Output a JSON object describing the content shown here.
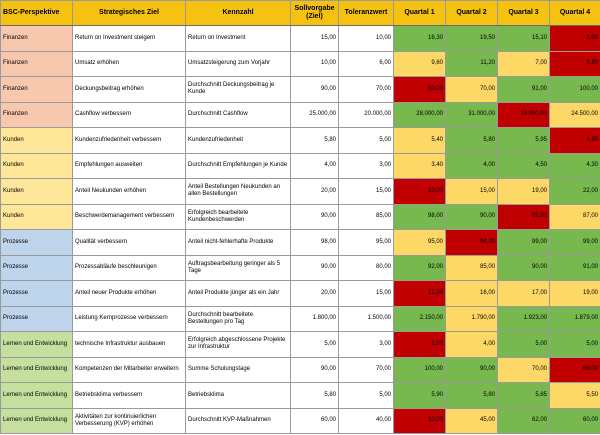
{
  "columns": [
    "BSC-Perspektive",
    "Strategisches Ziel",
    "Kennzahl",
    "Sollvorgabe (Ziel)",
    "Toleranzwert",
    "Quartal 1",
    "Quartal 2",
    "Quartal 3",
    "Quartal 4"
  ],
  "colors": {
    "header": "#f6c212",
    "green": "#77b94f",
    "yellow": "#fed867",
    "red": "#c00000",
    "perspective": {
      "Finanzen": "#f7c7ae",
      "Kunden": "#ffe799",
      "Prozesse": "#bdd4ea",
      "Lernen und Entwicklung": "#c5df9f"
    }
  },
  "rows": [
    {
      "perspective": "Finanzen",
      "goal": "Return on Investment steigern",
      "kpi": "Return on Investment",
      "target": "15,00",
      "tolerance": "10,00",
      "q": [
        {
          "v": "16,30",
          "s": "green"
        },
        {
          "v": "19,50",
          "s": "green"
        },
        {
          "v": "15,10",
          "s": "green"
        },
        {
          "v": "8,00",
          "s": "red"
        }
      ]
    },
    {
      "perspective": "Finanzen",
      "goal": "Umsatz erhöhen",
      "kpi": "Umsatzsteigerung zum Vorjahr",
      "target": "10,00",
      "tolerance": "6,00",
      "q": [
        {
          "v": "9,60",
          "s": "yellow"
        },
        {
          "v": "11,20",
          "s": "green"
        },
        {
          "v": "7,00",
          "s": "yellow"
        },
        {
          "v": "5,80",
          "s": "red"
        }
      ]
    },
    {
      "perspective": "Finanzen",
      "goal": "Deckungsbeitrag erhöhen",
      "kpi": "Durchschnitt Deckungsbeitrag je Kunde",
      "target": "90,00",
      "tolerance": "70,00",
      "q": [
        {
          "v": "50,00",
          "s": "red"
        },
        {
          "v": "70,00",
          "s": "yellow"
        },
        {
          "v": "91,00",
          "s": "green"
        },
        {
          "v": "100,00",
          "s": "green"
        }
      ]
    },
    {
      "perspective": "Finanzen",
      "goal": "Cashflow verbessern",
      "kpi": "Durchschnitt Cashflow",
      "target": "25.000,00",
      "tolerance": "20.000,00",
      "q": [
        {
          "v": "28.000,00",
          "s": "green"
        },
        {
          "v": "31.000,00",
          "s": "green"
        },
        {
          "v": "19.000,00",
          "s": "red"
        },
        {
          "v": "24.500,00",
          "s": "yellow"
        }
      ]
    },
    {
      "perspective": "Kunden",
      "goal": "Kundenzufriedenheit verbessern",
      "kpi": "Kundenzufriedenheit",
      "target": "5,80",
      "tolerance": "5,00",
      "q": [
        {
          "v": "5,40",
          "s": "yellow"
        },
        {
          "v": "5,80",
          "s": "green"
        },
        {
          "v": "5,95",
          "s": "green"
        },
        {
          "v": "4,90",
          "s": "red"
        }
      ]
    },
    {
      "perspective": "Kunden",
      "goal": "Empfehlungen ausweiten",
      "kpi": "Durchschnitt Empfehlungen je Kunde",
      "target": "4,00",
      "tolerance": "3,00",
      "q": [
        {
          "v": "3,40",
          "s": "yellow"
        },
        {
          "v": "4,00",
          "s": "green"
        },
        {
          "v": "4,50",
          "s": "green"
        },
        {
          "v": "4,30",
          "s": "green"
        }
      ]
    },
    {
      "perspective": "Kunden",
      "goal": "Anteil Neukunden erhöhen",
      "kpi": "Anteil Bestellungen Neukunden an allen Bestellungen",
      "target": "20,00",
      "tolerance": "15,00",
      "q": [
        {
          "v": "10,00",
          "s": "red"
        },
        {
          "v": "15,00",
          "s": "yellow"
        },
        {
          "v": "19,00",
          "s": "yellow"
        },
        {
          "v": "22,00",
          "s": "green"
        }
      ]
    },
    {
      "perspective": "Kunden",
      "goal": "Beschwerdemanagement verbessern",
      "kpi": "Erfolgreich bearbeitete Kundenbeschwerden",
      "target": "90,00",
      "tolerance": "85,00",
      "q": [
        {
          "v": "98,00",
          "s": "green"
        },
        {
          "v": "90,00",
          "s": "green"
        },
        {
          "v": "82,00",
          "s": "red"
        },
        {
          "v": "87,00",
          "s": "yellow"
        }
      ]
    },
    {
      "perspective": "Prozesse",
      "goal": "Qualität verbessern",
      "kpi": "Anteil nicht-fehlerhafte Produkte",
      "target": "98,00",
      "tolerance": "95,00",
      "q": [
        {
          "v": "95,00",
          "s": "yellow"
        },
        {
          "v": "94,00",
          "s": "red"
        },
        {
          "v": "99,00",
          "s": "green"
        },
        {
          "v": "99,00",
          "s": "green"
        }
      ]
    },
    {
      "perspective": "Prozesse",
      "goal": "Prozessabläufe beschleunigen",
      "kpi": "Auftragsbearbeitung geringer als 5 Tage",
      "target": "90,00",
      "tolerance": "80,00",
      "q": [
        {
          "v": "92,00",
          "s": "green"
        },
        {
          "v": "85,00",
          "s": "yellow"
        },
        {
          "v": "90,00",
          "s": "green"
        },
        {
          "v": "91,00",
          "s": "green"
        }
      ]
    },
    {
      "perspective": "Prozesse",
      "goal": "Anteil neuer Produkte erhöhen",
      "kpi": "Anteil Produkte jünger als ein Jahr",
      "target": "20,00",
      "tolerance": "15,00",
      "q": [
        {
          "v": "12,00",
          "s": "red"
        },
        {
          "v": "16,00",
          "s": "yellow"
        },
        {
          "v": "17,00",
          "s": "yellow"
        },
        {
          "v": "19,00",
          "s": "yellow"
        }
      ]
    },
    {
      "perspective": "Prozesse",
      "goal": "Leistung Kernprozesse verbessern",
      "kpi": "Durchschnitt bearbeitete Bestellungen pro Tag",
      "target": "1.800,00",
      "tolerance": "1.500,00",
      "q": [
        {
          "v": "2.150,00",
          "s": "green"
        },
        {
          "v": "1.790,00",
          "s": "yellow"
        },
        {
          "v": "1.923,00",
          "s": "green"
        },
        {
          "v": "1.879,00",
          "s": "green"
        }
      ]
    },
    {
      "perspective": "Lernen und Entwicklung",
      "goal": "technische Infrastruktur ausbauen",
      "kpi": "Erfolgreich abgeschlossene Projekte zur Infrastruktur",
      "target": "5,00",
      "tolerance": "3,00",
      "q": [
        {
          "v": "2,00",
          "s": "red"
        },
        {
          "v": "4,00",
          "s": "yellow"
        },
        {
          "v": "5,00",
          "s": "green"
        },
        {
          "v": "5,00",
          "s": "green"
        }
      ]
    },
    {
      "perspective": "Lernen und Entwicklung",
      "goal": "Kompetenzen der Mitarbeiter erweitern",
      "kpi": "Summe Schulungstage",
      "target": "90,00",
      "tolerance": "70,00",
      "q": [
        {
          "v": "100,00",
          "s": "green"
        },
        {
          "v": "90,00",
          "s": "green"
        },
        {
          "v": "70,00",
          "s": "yellow"
        },
        {
          "v": "60,00",
          "s": "red"
        }
      ]
    },
    {
      "perspective": "Lernen und Entwicklung",
      "goal": "Betriebsklima verbessern",
      "kpi": "Betriebsklima",
      "target": "5,80",
      "tolerance": "5,00",
      "q": [
        {
          "v": "5,90",
          "s": "green"
        },
        {
          "v": "5,80",
          "s": "green"
        },
        {
          "v": "5,85",
          "s": "green"
        },
        {
          "v": "5,50",
          "s": "yellow"
        }
      ]
    },
    {
      "perspective": "Lernen und Entwicklung",
      "goal": "Aktivitäten zur kontinuierlichen Verbesserung (KVP) erhöhen",
      "kpi": "Durchschnitt KVP-Maßnahmen",
      "target": "60,00",
      "tolerance": "40,00",
      "q": [
        {
          "v": "10,00",
          "s": "red"
        },
        {
          "v": "45,00",
          "s": "yellow"
        },
        {
          "v": "62,00",
          "s": "green"
        },
        {
          "v": "60,00",
          "s": "green"
        }
      ]
    }
  ]
}
